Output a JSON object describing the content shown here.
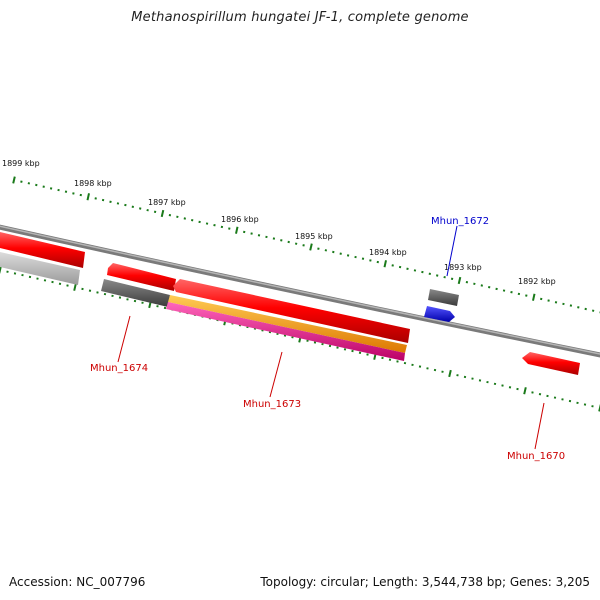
{
  "title": "Methanospirillum hungatei JF-1, complete genome",
  "footer": {
    "accession": "Accession: NC_007796",
    "summary": "Topology: circular; Length: 3,544,738 bp; Genes: 3,205"
  },
  "colors": {
    "backbone": "#7a7a7a",
    "ticks": "#1a7a1a",
    "gene_red": "#e60000",
    "gene_gray": "#5a5a5a",
    "gene_light_gray": "#b8b8b8",
    "gene_orange": "#ff9900",
    "gene_pink": "#e6007e",
    "gene_blue": "#0000ee",
    "label_red": "#cc0000",
    "label_blue": "#0000cc"
  },
  "tick_labels": [
    "1899 kbp",
    "1898 kbp",
    "1897 kbp",
    "1896 kbp",
    "1895 kbp",
    "1894 kbp",
    "1893 kbp",
    "1892 kbp"
  ],
  "gene_labels": [
    "Mhun_1674",
    "Mhun_1673",
    "Mhun_1672",
    "Mhun_1670"
  ]
}
